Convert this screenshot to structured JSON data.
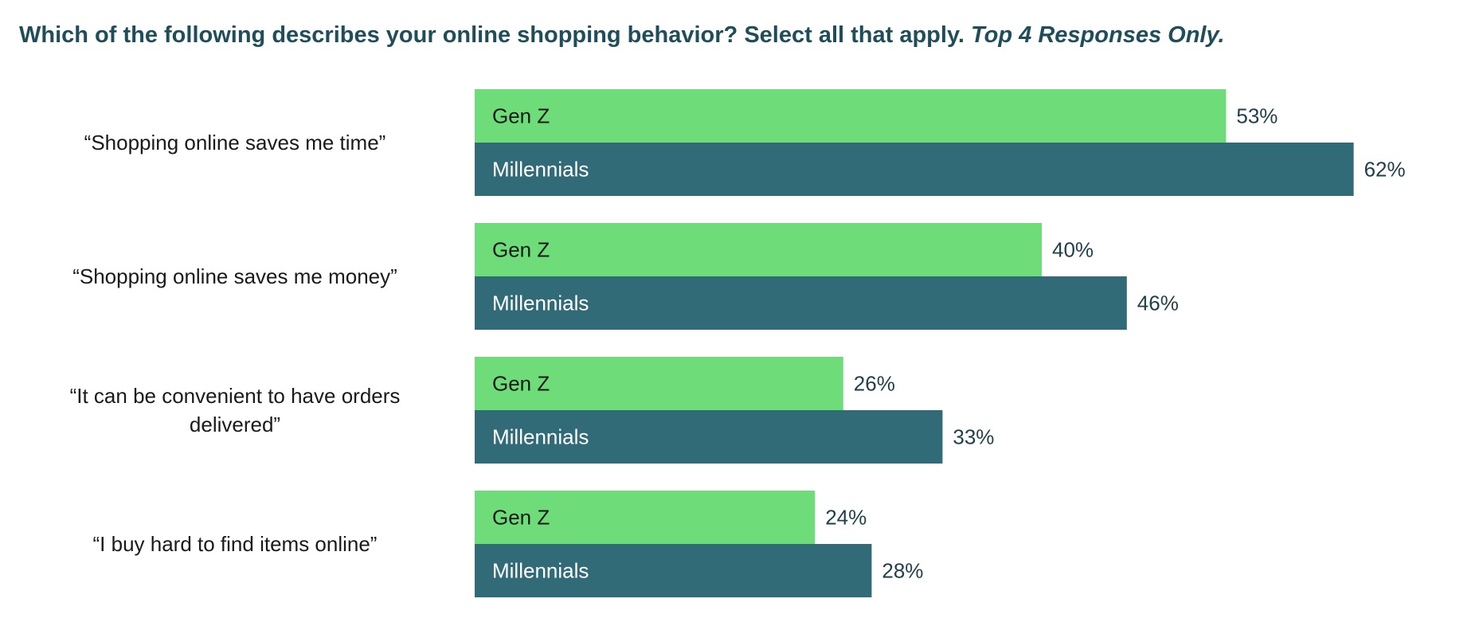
{
  "title": {
    "main": "Which of the following describes your online shopping behavior? Select all that apply.",
    "emphasis": "Top 4 Responses Only."
  },
  "chart_data": {
    "type": "bar",
    "orientation": "horizontal",
    "title": "Which of the following describes your online shopping behavior? Select all that apply. Top 4 Responses Only.",
    "categories": [
      [
        "“Shopping online saves me time”"
      ],
      [
        "“Shopping online saves me money”"
      ],
      [
        "“It can be convenient to have orders",
        "delivered”"
      ],
      [
        "“I buy hard to find items online”"
      ]
    ],
    "series": [
      {
        "name": "Gen Z",
        "color": "#6fdc7a",
        "text_color": "#1a1a1a",
        "values": [
          53,
          40,
          26,
          24
        ],
        "labels": [
          "53%",
          "40%",
          "26%",
          "24%"
        ]
      },
      {
        "name": "Millennials",
        "color": "#316b77",
        "text_color": "#ffffff",
        "values": [
          62,
          46,
          33,
          28
        ],
        "labels": [
          "62%",
          "46%",
          "33%",
          "28%"
        ]
      }
    ],
    "xlim": [
      0,
      62
    ],
    "grid": false,
    "legend": "none (series names drawn inside bars)"
  }
}
